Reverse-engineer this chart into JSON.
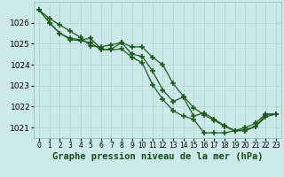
{
  "title": "Graphe pression niveau de la mer (hPa)",
  "background_color": "#cde8e8",
  "grid_color": "#b0d0d0",
  "line_color": "#1e5c1e",
  "marker": "+",
  "marker_size": 5,
  "line_width": 0.9,
  "x_labels": [
    "0",
    "1",
    "2",
    "3",
    "4",
    "5",
    "6",
    "7",
    "8",
    "9",
    "10",
    "11",
    "12",
    "13",
    "14",
    "15",
    "16",
    "17",
    "18",
    "19",
    "20",
    "21",
    "22",
    "23"
  ],
  "series": [
    [
      1026.6,
      1026.2,
      1025.9,
      1025.6,
      1025.3,
      1024.9,
      1024.85,
      1024.95,
      1025.05,
      1024.5,
      1024.4,
      1023.7,
      1022.8,
      1022.25,
      1022.45,
      1021.55,
      1021.7,
      1021.4,
      1021.1,
      1020.85,
      1020.9,
      1021.05,
      1021.6,
      1021.65
    ],
    [
      1026.6,
      1026.0,
      1025.5,
      1025.25,
      1025.2,
      1025.25,
      1024.75,
      1024.7,
      1024.75,
      1024.35,
      1024.1,
      1023.05,
      1022.35,
      1021.8,
      1021.55,
      1021.4,
      1020.75,
      1020.75,
      1020.75,
      1020.85,
      1020.85,
      1021.05,
      1021.5,
      1021.65
    ],
    [
      1026.6,
      1026.0,
      1025.5,
      1025.2,
      1025.15,
      1025.05,
      1024.7,
      1024.75,
      1025.05,
      1024.85,
      1024.85,
      1024.35,
      1024.0,
      1023.1,
      1022.5,
      1021.95,
      1021.6,
      1021.35,
      1021.05,
      1020.85,
      1021.0,
      1021.2,
      1021.65,
      1021.65
    ]
  ],
  "ylim": [
    1020.5,
    1027.0
  ],
  "yticks": [
    1021,
    1022,
    1023,
    1024,
    1025,
    1026
  ],
  "ylabel_fontsize": 6.5,
  "xlabel_fontsize": 5.5,
  "title_fontsize": 7.5,
  "title_color": "#1a4a1a",
  "title_fontfamily": "monospace"
}
